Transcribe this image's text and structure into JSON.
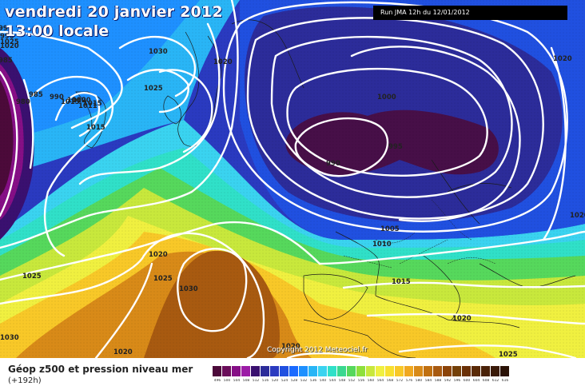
{
  "title": {
    "line1": "vendredi 20 janvier 2012",
    "line2": "13:00 locale"
  },
  "run_label": "Run JMA 12h du 12/01/2012",
  "copyright": "Copyright 2012 Meteociel.fr",
  "legend": {
    "title": "Géop z500 et pression niveau mer",
    "subtitle": "(+192h)",
    "scale_values": [
      "496",
      "500",
      "504",
      "508",
      "512",
      "516",
      "520",
      "524",
      "528",
      "532",
      "536",
      "540",
      "544",
      "548",
      "552",
      "556",
      "560",
      "564",
      "568",
      "572",
      "576",
      "580",
      "584",
      "588",
      "592",
      "596",
      "600",
      "604",
      "608",
      "612",
      "616"
    ],
    "scale_colors": [
      "#4c0a3a",
      "#6a0d5a",
      "#860f86",
      "#9c1ca6",
      "#3a1070",
      "#2c2c9a",
      "#2a3ac0",
      "#2050e0",
      "#1a6aff",
      "#1e90ff",
      "#29b5f6",
      "#3ad3f0",
      "#30e0c8",
      "#3ad890",
      "#56d85c",
      "#8ee03c",
      "#c8e83c",
      "#f0f040",
      "#f8e030",
      "#f8c828",
      "#f0a820",
      "#d88a18",
      "#c07010",
      "#a85a10",
      "#8c4408",
      "#744008",
      "#6a3006",
      "#5a2a06",
      "#4a2208",
      "#3a1a08",
      "#2a1206"
    ]
  },
  "isobar_labels": [
    "995",
    "980",
    "985",
    "990",
    "985",
    "1030",
    "1020",
    "1025",
    "990",
    "1011",
    "1015",
    "1020",
    "1025",
    "1025",
    "1030",
    "1030",
    "1020",
    "1025",
    "1020",
    "1020",
    "1000",
    "995",
    "990",
    "1005",
    "1010",
    "1015",
    "1020",
    "1025",
    "1020",
    "1020",
    "1015",
    "1010",
    "1015",
    "1020"
  ]
}
